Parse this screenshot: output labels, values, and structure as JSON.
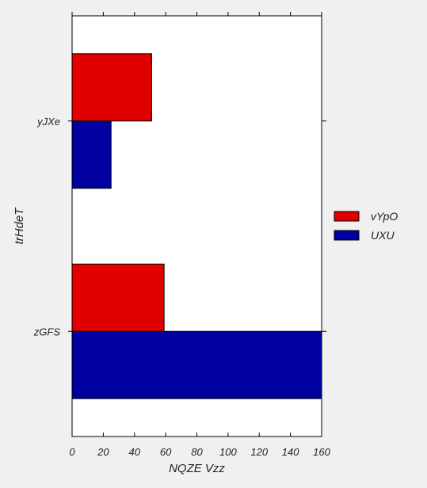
{
  "chart_data": {
    "type": "bar",
    "orientation": "horizontal",
    "categories": [
      "yJXe",
      "zGFS"
    ],
    "series": [
      {
        "name": "vYpO",
        "values": [
          51,
          59
        ],
        "color": "#e00000"
      },
      {
        "name": "UXU",
        "values": [
          25,
          160
        ],
        "color": "#0000a0"
      }
    ],
    "xlabel": "NQZE Vzz",
    "ylabel": "trHdeT",
    "xlim": [
      0,
      160
    ],
    "xticks": [
      0,
      20,
      40,
      60,
      80,
      100,
      120,
      140,
      160
    ],
    "grid": false,
    "legend_position": "right"
  }
}
